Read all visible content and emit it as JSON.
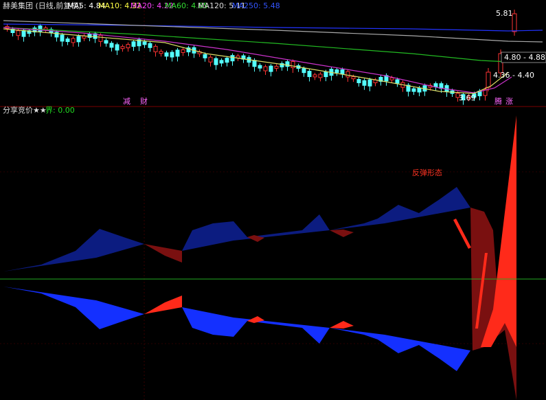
{
  "header": {
    "stock": "赫美集团 (日线,前复权)",
    "ma": [
      "MA5: 4.84",
      "MA10: 4.32",
      "MA20: 4.22",
      "MA60: 4.65",
      "MA120: 5.11",
      "MA250: 5.48"
    ]
  },
  "price_labels": [
    "5.81",
    "4.80 - 4.88",
    "4.36 - 4.40",
    "3.69"
  ],
  "markers": [
    "减",
    "财",
    "腾",
    "涨"
  ],
  "indicator": {
    "title": "分享竞价★★",
    "value": "界: 0.00",
    "annotation": "反弹形态"
  }
}
